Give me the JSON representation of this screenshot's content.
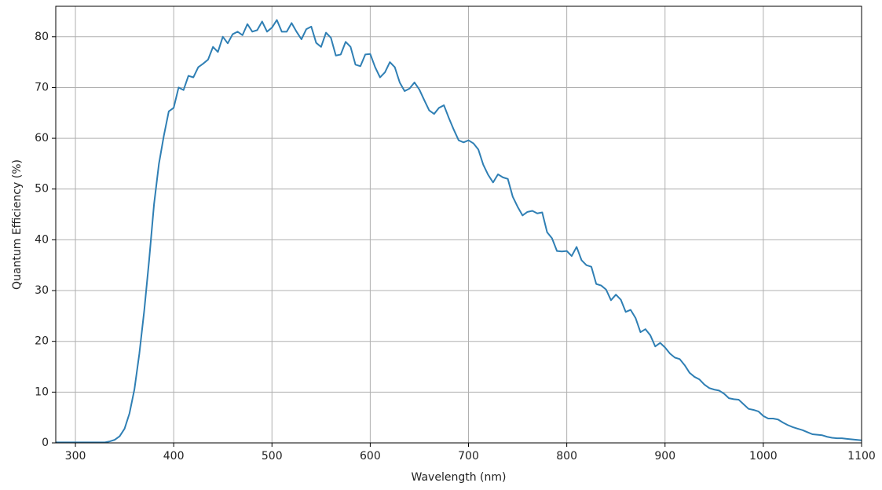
{
  "chart_data": {
    "type": "line",
    "xlabel": "Wavelength (nm)",
    "ylabel": "Quantum Efficiency (%)",
    "x": [
      280,
      290,
      300,
      310,
      320,
      330,
      335,
      340,
      345,
      350,
      355,
      360,
      365,
      370,
      375,
      380,
      385,
      390,
      395,
      400,
      405,
      410,
      415,
      420,
      425,
      430,
      435,
      440,
      445,
      450,
      455,
      460,
      465,
      470,
      475,
      480,
      485,
      490,
      495,
      500,
      505,
      510,
      515,
      520,
      525,
      530,
      535,
      540,
      545,
      550,
      555,
      560,
      565,
      570,
      575,
      580,
      585,
      590,
      595,
      600,
      605,
      610,
      615,
      620,
      625,
      630,
      635,
      640,
      645,
      650,
      655,
      660,
      665,
      670,
      675,
      680,
      685,
      690,
      695,
      700,
      705,
      710,
      715,
      720,
      725,
      730,
      735,
      740,
      745,
      750,
      755,
      760,
      765,
      770,
      775,
      780,
      785,
      790,
      795,
      800,
      805,
      810,
      815,
      820,
      825,
      830,
      835,
      840,
      845,
      850,
      855,
      860,
      865,
      870,
      875,
      880,
      885,
      890,
      895,
      900,
      905,
      910,
      915,
      920,
      925,
      930,
      935,
      940,
      945,
      950,
      955,
      960,
      965,
      970,
      975,
      980,
      985,
      990,
      995,
      1000,
      1005,
      1010,
      1015,
      1020,
      1025,
      1030,
      1035,
      1040,
      1045,
      1050,
      1055,
      1060,
      1065,
      1070,
      1075,
      1080,
      1085,
      1090,
      1095,
      1100
    ],
    "values": [
      0.1,
      0.1,
      0.1,
      0.1,
      0.1,
      0.1,
      0.3,
      0.6,
      1.3,
      2.8,
      5.8,
      10.5,
      17.5,
      26,
      36,
      47,
      55,
      60.5,
      65.3,
      66,
      70,
      69.5,
      72.3,
      72,
      74,
      74.7,
      75.5,
      78,
      77,
      80,
      78.7,
      80.5,
      81,
      80.3,
      82.5,
      81,
      81.3,
      83,
      81,
      81.8,
      83.3,
      81,
      81,
      82.7,
      81,
      79.5,
      81.5,
      82,
      78.8,
      78,
      80.8,
      79.8,
      76.3,
      76.5,
      79,
      78,
      74.5,
      74.2,
      76.5,
      76.6,
      74,
      72,
      73,
      75,
      74,
      71,
      69.3,
      69.8,
      71,
      69.6,
      67.5,
      65.5,
      64.8,
      66,
      66.5,
      64,
      61.7,
      59.6,
      59.2,
      59.6,
      59,
      57.8,
      54.8,
      52.8,
      51.3,
      52.9,
      52.3,
      52,
      48.5,
      46.5,
      44.8,
      45.5,
      45.7,
      45.2,
      45.4,
      41.5,
      40.3,
      37.8,
      37.7,
      37.8,
      36.8,
      38.6,
      36,
      35,
      34.7,
      31.3,
      31,
      30.2,
      28.1,
      29.2,
      28.2,
      25.8,
      26.2,
      24.6,
      21.8,
      22.4,
      21.2,
      19,
      19.7,
      18.8,
      17.6,
      16.8,
      16.5,
      15.3,
      13.8,
      13,
      12.5,
      11.5,
      10.8,
      10.5,
      10.3,
      9.7,
      8.8,
      8.6,
      8.5,
      7.6,
      6.7,
      6.5,
      6.2,
      5.3,
      4.8,
      4.8,
      4.6,
      4,
      3.5,
      3.1,
      2.8,
      2.5,
      2.1,
      1.7,
      1.6,
      1.5,
      1.2,
      1,
      0.9,
      0.9,
      0.8,
      0.7,
      0.6,
      0.5
    ],
    "color": "#2f7fb4",
    "xlim": [
      280,
      1100
    ],
    "xticks": [
      300,
      400,
      500,
      600,
      700,
      800,
      900,
      1000,
      1100
    ],
    "ylim": [
      0,
      86
    ],
    "yticks": [
      0,
      10,
      20,
      30,
      40,
      50,
      60,
      70,
      80
    ],
    "grid": true
  }
}
